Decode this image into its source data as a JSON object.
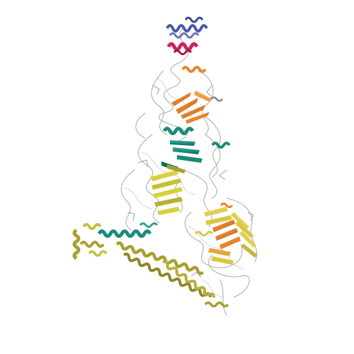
{
  "image": {
    "subject": "protein-structure-ribbon",
    "background": "#ffffff",
    "palette": {
      "coil": "#b8b8b8",
      "coil_dark": "#8a8a8a",
      "blue_helix": "#4a58a8",
      "magenta_helix": "#d0205a",
      "orange_sheet": "#e8852a",
      "teal_helix": "#1a8a7a",
      "yellow_sheet": "#d8d040",
      "olive_helix": "#a8a030",
      "gold_sheet": "#e0a83a"
    }
  }
}
